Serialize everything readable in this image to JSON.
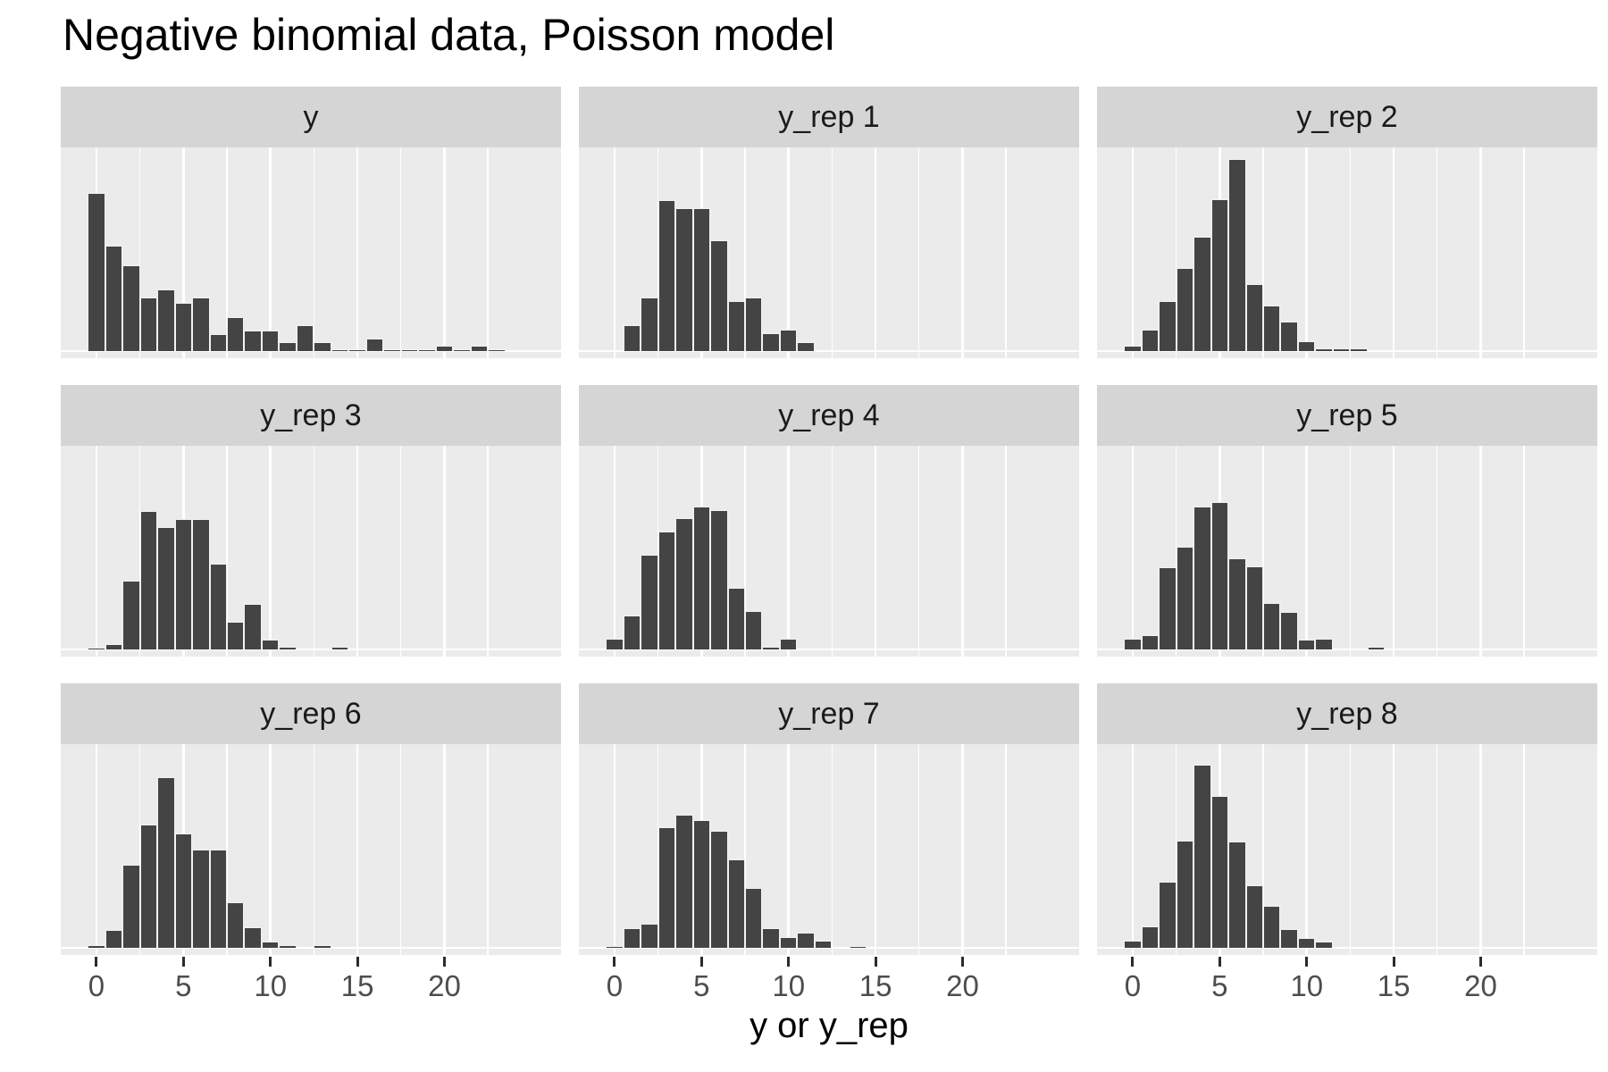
{
  "title": "Negative binomial data, Poisson model",
  "x_axis": {
    "title": "y or y_rep",
    "tick_values": [
      0,
      5,
      10,
      15,
      20
    ],
    "tick_labels": [
      "0",
      "5",
      "10",
      "15",
      "20"
    ]
  },
  "colors": {
    "bar_fill": "#444444",
    "bar_outline": "#F2F2F2",
    "panel_background": "#EBEBEB",
    "strip_background": "#D5D5D5",
    "gridline": "#FFFFFF",
    "tick_label": "#4D4D4D",
    "tick_mark": "#2B2B2B",
    "title_color": "#000000"
  },
  "chart_data": {
    "type": "bar",
    "subtype": "faceted-histograms",
    "title": "Negative binomial data, Poisson model",
    "xlabel": "y or y_rep",
    "ylabel": "",
    "y_axis_hidden": true,
    "grid": "white-on-gray, vertical majors at ticks, minors at 2.5 intervals, baseline at y=0",
    "x_range": [
      -2.05,
      26.7
    ],
    "x_ticks": [
      0,
      5,
      10,
      15,
      20
    ],
    "bin_width": 1,
    "bin_centers": [
      0,
      1,
      2,
      3,
      4,
      5,
      6,
      7,
      8,
      9,
      10,
      11,
      12,
      13,
      14,
      15,
      16,
      17,
      18,
      19,
      20,
      21,
      22,
      23
    ],
    "y_unit": "estimated relative count (pixel-proportional, no y axis shown)",
    "ylim": [
      0,
      236
    ],
    "facets": [
      {
        "label": "y",
        "counts": [
          177,
          118,
          96,
          60,
          69,
          54,
          60,
          19,
          38,
          23,
          23,
          10,
          29,
          10,
          2,
          2,
          14,
          2,
          2,
          2,
          6,
          2,
          6,
          2
        ]
      },
      {
        "label": "y_rep 1",
        "counts": [
          0,
          29,
          60,
          169,
          160,
          160,
          124,
          56,
          60,
          20,
          24,
          10,
          0,
          0,
          0,
          0,
          0,
          0,
          0,
          0,
          0,
          0,
          0,
          0
        ]
      },
      {
        "label": "y_rep 2",
        "counts": [
          6,
          24,
          56,
          93,
          128,
          170,
          215,
          75,
          51,
          33,
          11,
          3,
          3,
          3,
          0,
          0,
          0,
          0,
          0,
          0,
          0,
          0,
          0,
          0
        ]
      },
      {
        "label": "y_rep 3",
        "counts": [
          2,
          6,
          77,
          155,
          137,
          146,
          146,
          96,
          31,
          51,
          11,
          3,
          0,
          0,
          3,
          0,
          0,
          0,
          0,
          0,
          0,
          0,
          0,
          0
        ]
      },
      {
        "label": "y_rep 4",
        "counts": [
          12,
          38,
          106,
          132,
          147,
          160,
          156,
          69,
          43,
          3,
          12,
          0,
          0,
          0,
          0,
          0,
          0,
          0,
          0,
          0,
          0,
          0,
          0,
          0
        ]
      },
      {
        "label": "y_rep 5",
        "counts": [
          12,
          16,
          92,
          115,
          160,
          165,
          102,
          93,
          52,
          42,
          11,
          12,
          0,
          0,
          3,
          0,
          0,
          0,
          0,
          0,
          0,
          0,
          0,
          0
        ]
      },
      {
        "label": "y_rep 6",
        "counts": [
          3,
          20,
          93,
          138,
          191,
          128,
          110,
          110,
          51,
          23,
          7,
          3,
          0,
          3,
          0,
          0,
          0,
          0,
          0,
          0,
          0,
          0,
          0,
          0
        ]
      },
      {
        "label": "y_rep 7",
        "counts": [
          2,
          22,
          27,
          135,
          149,
          143,
          131,
          99,
          67,
          22,
          12,
          17,
          8,
          0,
          2,
          0,
          0,
          0,
          0,
          0,
          0,
          0,
          0,
          0
        ]
      },
      {
        "label": "y_rep 8",
        "counts": [
          8,
          24,
          74,
          120,
          205,
          170,
          119,
          70,
          47,
          21,
          11,
          7,
          0,
          0,
          0,
          0,
          0,
          0,
          0,
          0,
          0,
          0,
          0,
          0
        ]
      }
    ],
    "legend": "none"
  }
}
